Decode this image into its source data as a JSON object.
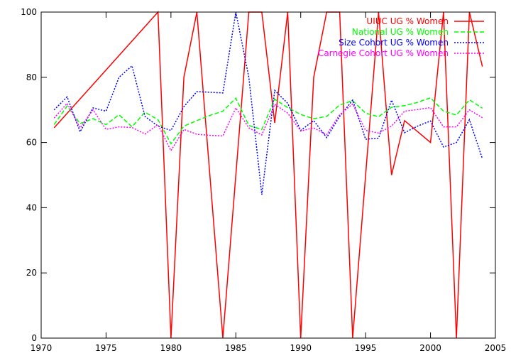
{
  "chart_data": {
    "type": "line",
    "title": "",
    "xlabel": "",
    "ylabel": "",
    "xlim": [
      1970,
      2005
    ],
    "ylim": [
      0,
      100
    ],
    "x_ticks": [
      1970,
      1975,
      1980,
      1985,
      1990,
      1995,
      2000,
      2005
    ],
    "y_ticks": [
      0,
      20,
      40,
      60,
      80,
      100
    ],
    "grid": false,
    "legend_position": "top-right",
    "series": [
      {
        "name": "UIUC UG % Women",
        "color": "#ff0000",
        "dash": "solid",
        "x": [
          1971,
          1979,
          1980,
          1981,
          1982,
          1984,
          1986,
          1987,
          1988,
          1989,
          1990,
          1991,
          1992,
          1993,
          1994,
          1996,
          1997,
          1998,
          2000,
          2001,
          2002,
          2003,
          2004
        ],
        "y": [
          64.5,
          100,
          0,
          80,
          100,
          0,
          100,
          100,
          66,
          100,
          0,
          80,
          100,
          100,
          0,
          100,
          50,
          66.7,
          60,
          100,
          0,
          100,
          83.3
        ]
      },
      {
        "name": "National UG % Women",
        "color": "#00ff00",
        "dash": "dashed",
        "x": [
          1971,
          1972,
          1973,
          1974,
          1975,
          1976,
          1977,
          1978,
          1979,
          1980,
          1981,
          1982,
          1983,
          1984,
          1985,
          1986,
          1987,
          1988,
          1989,
          1990,
          1991,
          1992,
          1993,
          1994,
          1995,
          1996,
          1997,
          1998,
          1999,
          2000,
          2001,
          2002,
          2003,
          2004
        ],
        "y": [
          65.5,
          71.2,
          65.8,
          67.3,
          65.5,
          68.5,
          64.8,
          69.3,
          67.0,
          59.6,
          65.0,
          66.7,
          68.3,
          69.6,
          73.6,
          65.2,
          64.0,
          73.3,
          70.7,
          68.6,
          67.3,
          68.0,
          71.5,
          72.8,
          69.0,
          67.9,
          70.8,
          71.3,
          72.3,
          73.7,
          69.6,
          68.4,
          73.1,
          70.5
        ]
      },
      {
        "name": "Size Cohort UG % Women",
        "color": "#0000ff",
        "dash": "dotted",
        "x": [
          1971,
          1972,
          1973,
          1974,
          1975,
          1976,
          1977,
          1978,
          1979,
          1980,
          1981,
          1982,
          1983,
          1984,
          1985,
          1986,
          1987,
          1988,
          1989,
          1990,
          1991,
          1992,
          1993,
          1994,
          1995,
          1996,
          1997,
          1998,
          1999,
          2000,
          2001,
          2002,
          2003,
          2004
        ],
        "y": [
          70.0,
          74.0,
          63.3,
          70.6,
          69.6,
          80.0,
          83.5,
          68.0,
          65.0,
          63.7,
          71.0,
          75.6,
          75.4,
          75.2,
          100,
          80.0,
          44.0,
          76.0,
          72.0,
          63.7,
          66.7,
          61.5,
          68.0,
          73.0,
          61.0,
          61.3,
          73.0,
          63.0,
          65.0,
          66.6,
          58.6,
          60.0,
          67.0,
          55.0
        ]
      },
      {
        "name": "Carnegie Cohort UG % Women",
        "color": "#ff00ff",
        "dash": "dotted",
        "x": [
          1971,
          1972,
          1973,
          1974,
          1975,
          1976,
          1977,
          1978,
          1979,
          1980,
          1981,
          1982,
          1983,
          1984,
          1985,
          1986,
          1987,
          1988,
          1989,
          1990,
          1991,
          1992,
          1993,
          1994,
          1995,
          1996,
          1997,
          1998,
          1999,
          2000,
          2001,
          2002,
          2003,
          2004
        ],
        "y": [
          67.5,
          72.0,
          64.5,
          70.0,
          64.0,
          64.8,
          64.6,
          62.6,
          65.5,
          57.5,
          64.0,
          62.5,
          62.2,
          62.0,
          70.6,
          64.5,
          62.3,
          71.7,
          69.0,
          63.5,
          64.5,
          62.4,
          68.5,
          71.8,
          63.7,
          62.9,
          65.0,
          69.6,
          70.1,
          70.7,
          64.8,
          64.8,
          70.0,
          67.6
        ]
      }
    ]
  }
}
